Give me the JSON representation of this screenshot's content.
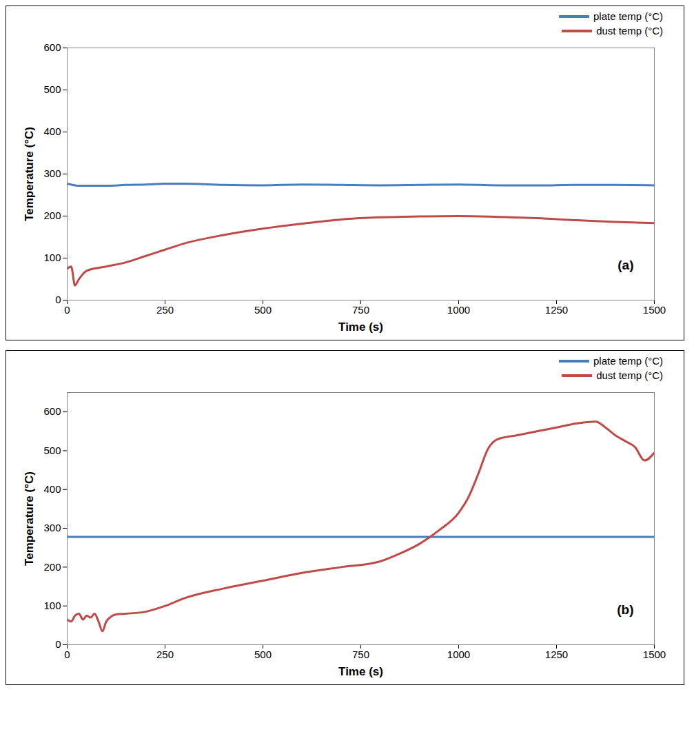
{
  "chart_data": [
    {
      "type": "line",
      "x_label": "Time (s)",
      "y_label": "Temperature (°C)",
      "annotations": [
        "(a)"
      ],
      "legend": "top right",
      "xlim": [
        0,
        1500
      ],
      "xticks": [
        0,
        250,
        500,
        750,
        1000,
        1250,
        1500
      ],
      "ylim": [
        0,
        600
      ],
      "yticks": [
        0,
        100,
        200,
        300,
        400,
        500,
        600
      ],
      "x": [
        0,
        10,
        20,
        30,
        50,
        100,
        150,
        200,
        250,
        300,
        400,
        500,
        600,
        700,
        800,
        900,
        1000,
        1100,
        1200,
        1300,
        1400,
        1500
      ],
      "series": [
        {
          "name": "plate temp (°C)",
          "color": "#4a7ebb",
          "values": [
            277,
            275,
            273,
            272,
            272,
            272,
            274,
            275,
            277,
            277,
            274,
            273,
            275,
            274,
            273,
            274,
            275,
            273,
            273,
            274,
            274,
            273
          ]
        },
        {
          "name": "dust temp  (°C)",
          "color": "#be4b48",
          "values": [
            75,
            80,
            35,
            50,
            70,
            80,
            90,
            105,
            120,
            135,
            155,
            170,
            182,
            192,
            197,
            199,
            200,
            198,
            195,
            190,
            186,
            183
          ]
        }
      ]
    },
    {
      "type": "line",
      "x_label": "Time (s)",
      "y_label": "Temperature (°C)",
      "annotations": [
        "(b)"
      ],
      "legend": "top right",
      "xlim": [
        0,
        1500
      ],
      "xticks": [
        0,
        250,
        500,
        750,
        1000,
        1250,
        1500
      ],
      "ylim": [
        0,
        650
      ],
      "yticks": [
        0,
        100,
        200,
        300,
        400,
        500,
        600
      ],
      "x": [
        0,
        10,
        20,
        30,
        40,
        50,
        60,
        70,
        80,
        90,
        100,
        125,
        150,
        200,
        250,
        300,
        400,
        500,
        600,
        700,
        800,
        850,
        900,
        950,
        1000,
        1025,
        1050,
        1075,
        1100,
        1150,
        1200,
        1250,
        1300,
        1350,
        1375,
        1400,
        1425,
        1450,
        1475,
        1500
      ],
      "series": [
        {
          "name": "plate temp (°C)",
          "color": "#4a7ebb",
          "values": [
            278,
            278,
            278,
            278,
            278,
            278,
            278,
            278,
            278,
            278,
            278,
            278,
            278,
            278,
            278,
            278,
            278,
            278,
            278,
            278,
            278,
            278,
            278,
            278,
            278,
            278,
            278,
            278,
            278,
            278,
            278,
            278,
            278,
            278,
            278,
            278,
            278,
            278,
            278,
            278
          ]
        },
        {
          "name": "dust temp (°C)",
          "color": "#be4b48",
          "values": [
            65,
            60,
            75,
            80,
            65,
            75,
            70,
            80,
            60,
            35,
            60,
            78,
            80,
            85,
            100,
            120,
            145,
            165,
            185,
            200,
            215,
            235,
            260,
            295,
            340,
            380,
            440,
            505,
            530,
            540,
            550,
            560,
            570,
            575,
            560,
            540,
            525,
            510,
            475,
            495
          ]
        }
      ]
    }
  ]
}
